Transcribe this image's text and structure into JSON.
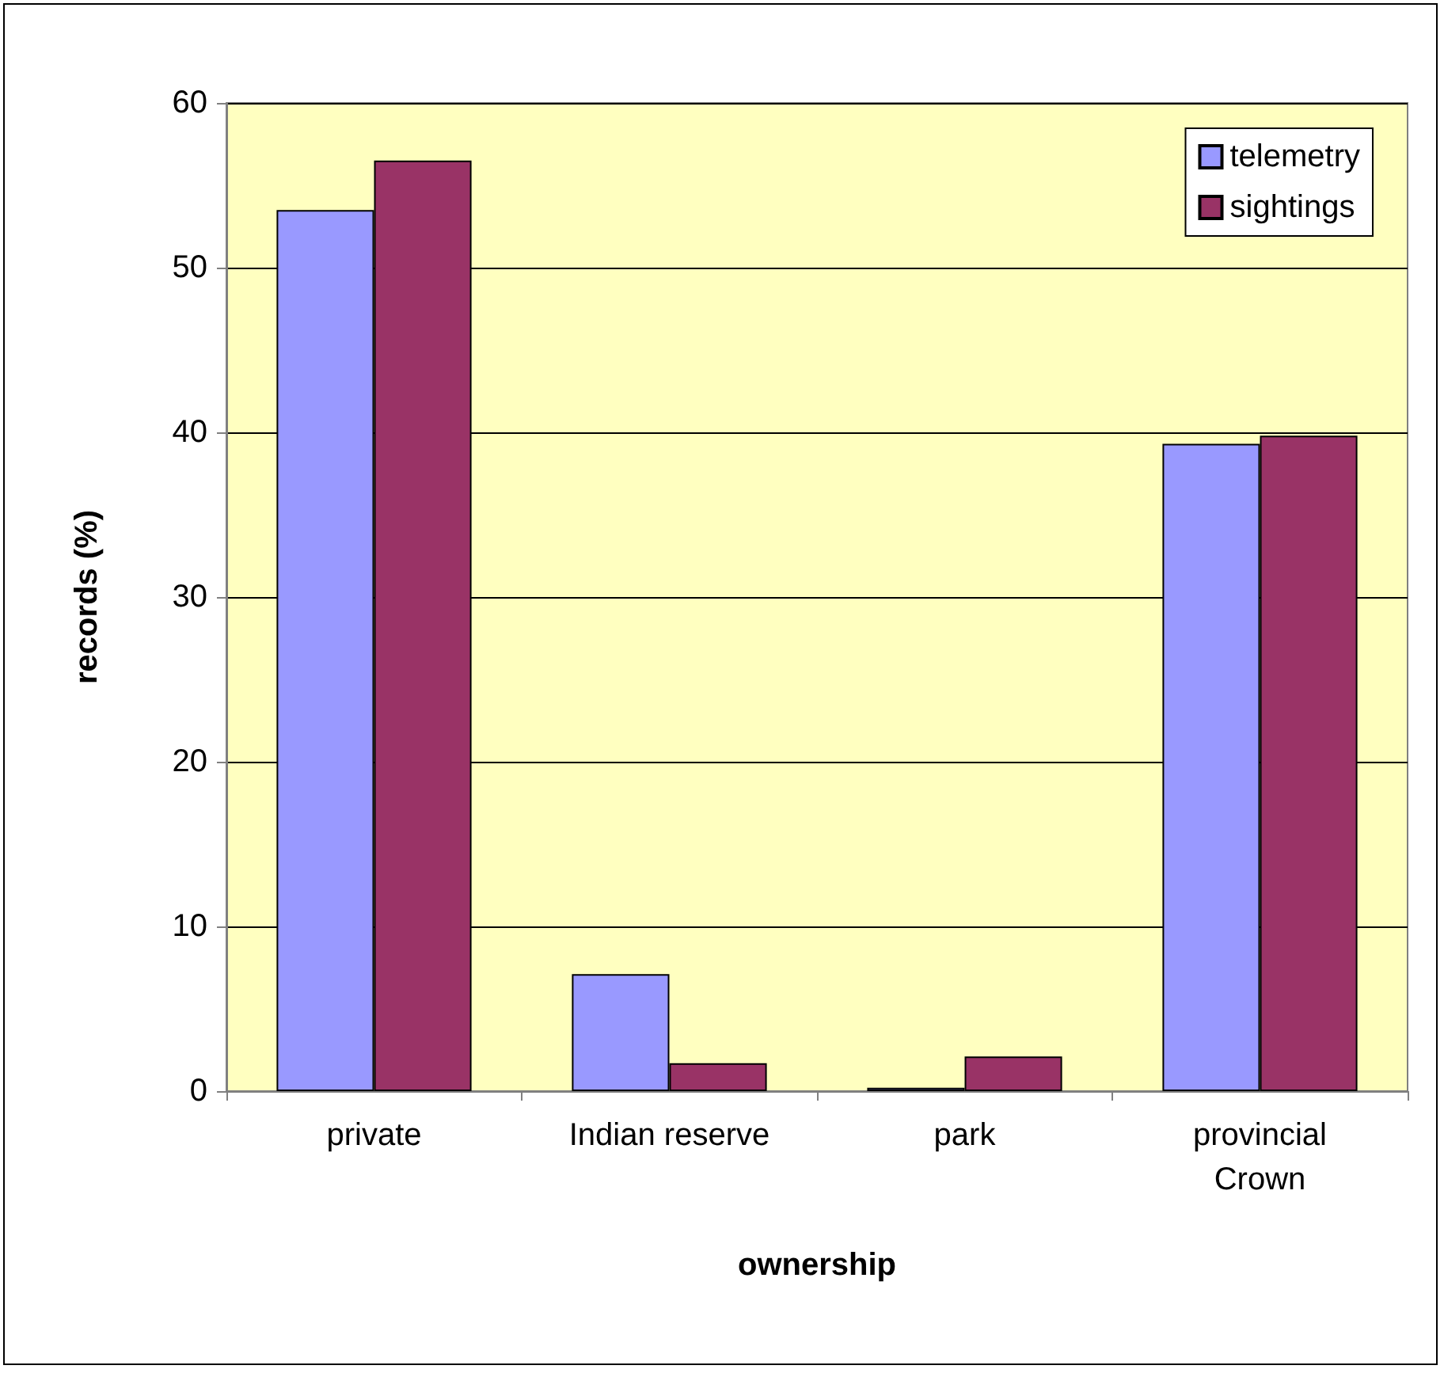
{
  "chart_data": {
    "type": "bar",
    "xlabel": "ownership",
    "ylabel": "records (%)",
    "categories": [
      "private",
      "Indian reserve",
      "park",
      "provincial\nCrown"
    ],
    "series": [
      {
        "name": "telemetry",
        "color": "#9999ff",
        "values": [
          53.5,
          7.1,
          0.2,
          39.3
        ]
      },
      {
        "name": "sightings",
        "color": "#993366",
        "values": [
          56.5,
          1.7,
          2.1,
          39.8
        ]
      }
    ],
    "ylim": [
      0,
      60
    ],
    "yticks": [
      0,
      10,
      20,
      30,
      40,
      50,
      60
    ],
    "grid": "y",
    "legend": "top right"
  }
}
